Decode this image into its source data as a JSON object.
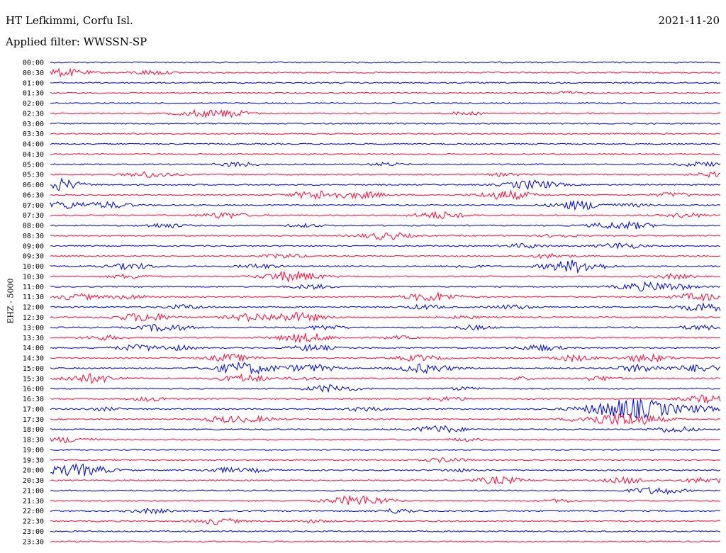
{
  "header": {
    "station": "HT Lefkimmi, Corfu Isl.",
    "date": "2021-11-20",
    "filter": "Applied filter: WWSSN-SP"
  },
  "channel_label": "EHZ - 5000",
  "colors": {
    "even_trace": "#0a12d8",
    "odd_trace": "#ff1744"
  },
  "chart_data": {
    "type": "line",
    "title": "HT Lefkimmi, Corfu Isl.",
    "subtitle": "Applied filter: WWSSN-SP",
    "ylabel": "EHZ - 5000",
    "xlabel": "",
    "grid": false,
    "rows": [
      {
        "label": "00:00",
        "events": []
      },
      {
        "label": "00:30",
        "events": [
          [
            0.02,
            5
          ],
          [
            0.15,
            3
          ]
        ]
      },
      {
        "label": "01:00",
        "events": []
      },
      {
        "label": "01:30",
        "events": [
          [
            0.77,
            2
          ]
        ]
      },
      {
        "label": "02:00",
        "events": []
      },
      {
        "label": "02:30",
        "events": [
          [
            0.22,
            4
          ],
          [
            0.26,
            3
          ],
          [
            0.28,
            2
          ],
          [
            0.62,
            2
          ]
        ]
      },
      {
        "label": "03:00",
        "events": []
      },
      {
        "label": "03:30",
        "events": []
      },
      {
        "label": "04:00",
        "events": []
      },
      {
        "label": "04:30",
        "events": []
      },
      {
        "label": "05:00",
        "events": [
          [
            0.28,
            3
          ],
          [
            0.5,
            2
          ],
          [
            0.97,
            3
          ]
        ]
      },
      {
        "label": "05:30",
        "events": [
          [
            0.15,
            4
          ],
          [
            0.68,
            2
          ],
          [
            0.99,
            3
          ]
        ]
      },
      {
        "label": "06:00",
        "events": [
          [
            0.0,
            6
          ],
          [
            0.02,
            3
          ],
          [
            0.72,
            6
          ]
        ]
      },
      {
        "label": "06:30",
        "events": [
          [
            0.4,
            6
          ],
          [
            0.47,
            4
          ],
          [
            0.68,
            6
          ],
          [
            0.93,
            3
          ]
        ]
      },
      {
        "label": "07:00",
        "events": [
          [
            0.02,
            5
          ],
          [
            0.09,
            4
          ],
          [
            0.79,
            6
          ],
          [
            0.87,
            2
          ]
        ]
      },
      {
        "label": "07:30",
        "events": [
          [
            0.26,
            4
          ],
          [
            0.58,
            5
          ],
          [
            0.95,
            3
          ]
        ]
      },
      {
        "label": "08:00",
        "events": [
          [
            0.17,
            3
          ],
          [
            0.38,
            2
          ],
          [
            0.83,
            3
          ],
          [
            0.87,
            4
          ]
        ]
      },
      {
        "label": "08:30",
        "events": [
          [
            0.5,
            5
          ],
          [
            0.76,
            2
          ]
        ]
      },
      {
        "label": "09:00",
        "events": [
          [
            0.71,
            3
          ],
          [
            0.85,
            4
          ]
        ]
      },
      {
        "label": "09:30",
        "events": [
          [
            0.35,
            3
          ],
          [
            0.75,
            3
          ]
        ]
      },
      {
        "label": "10:00",
        "events": [
          [
            0.12,
            4
          ],
          [
            0.31,
            3
          ],
          [
            0.62,
            2
          ],
          [
            0.77,
            6
          ],
          [
            0.8,
            4
          ]
        ]
      },
      {
        "label": "10:30",
        "events": [
          [
            0.12,
            3
          ],
          [
            0.36,
            7
          ],
          [
            0.93,
            3
          ]
        ]
      },
      {
        "label": "11:00",
        "events": [
          [
            0.39,
            3
          ],
          [
            0.88,
            5
          ],
          [
            0.93,
            4
          ]
        ]
      },
      {
        "label": "11:30",
        "events": [
          [
            0.04,
            4
          ],
          [
            0.12,
            3
          ],
          [
            0.57,
            6
          ],
          [
            0.97,
            5
          ]
        ]
      },
      {
        "label": "12:00",
        "events": [
          [
            0.2,
            3
          ],
          [
            0.56,
            3
          ],
          [
            0.69,
            3
          ],
          [
            0.98,
            6
          ]
        ]
      },
      {
        "label": "12:30",
        "events": [
          [
            0.14,
            6
          ],
          [
            0.3,
            5
          ],
          [
            0.37,
            6
          ],
          [
            0.62,
            2
          ]
        ]
      },
      {
        "label": "13:00",
        "events": [
          [
            0.17,
            5
          ],
          [
            0.41,
            3
          ],
          [
            0.63,
            3
          ],
          [
            0.97,
            3
          ]
        ]
      },
      {
        "label": "13:30",
        "events": [
          [
            0.08,
            3
          ],
          [
            0.38,
            6
          ],
          [
            0.52,
            2
          ]
        ]
      },
      {
        "label": "14:00",
        "events": [
          [
            0.13,
            4
          ],
          [
            0.19,
            3
          ],
          [
            0.39,
            4
          ],
          [
            0.73,
            4
          ]
        ]
      },
      {
        "label": "14:30",
        "events": [
          [
            0.27,
            5
          ],
          [
            0.55,
            4
          ],
          [
            0.78,
            4
          ],
          [
            0.89,
            5
          ]
        ]
      },
      {
        "label": "15:00",
        "events": [
          [
            0.29,
            8
          ],
          [
            0.39,
            5
          ],
          [
            0.56,
            6
          ],
          [
            0.88,
            5
          ],
          [
            0.97,
            5
          ]
        ]
      },
      {
        "label": "15:30",
        "events": [
          [
            0.06,
            6
          ],
          [
            0.29,
            5
          ],
          [
            0.38,
            2
          ],
          [
            0.7,
            2
          ],
          [
            0.82,
            3
          ]
        ]
      },
      {
        "label": "16:00",
        "events": [
          [
            0.42,
            5
          ],
          [
            0.62,
            2
          ]
        ]
      },
      {
        "label": "16:30",
        "events": [
          [
            0.15,
            3
          ],
          [
            0.59,
            3
          ],
          [
            0.98,
            5
          ]
        ]
      },
      {
        "label": "17:00",
        "events": [
          [
            0.08,
            2
          ],
          [
            0.47,
            3
          ],
          [
            0.87,
            14
          ],
          [
            0.97,
            3
          ]
        ]
      },
      {
        "label": "17:30",
        "events": [
          [
            0.26,
            4
          ],
          [
            0.31,
            3
          ],
          [
            0.8,
            3
          ],
          [
            0.86,
            9
          ]
        ]
      },
      {
        "label": "18:00",
        "events": [
          [
            0.58,
            5
          ],
          [
            0.93,
            4
          ]
        ]
      },
      {
        "label": "18:30",
        "events": [
          [
            0.03,
            4
          ],
          [
            0.62,
            2
          ]
        ]
      },
      {
        "label": "19:00",
        "events": []
      },
      {
        "label": "19:30",
        "events": [
          [
            0.59,
            3
          ]
        ]
      },
      {
        "label": "20:00",
        "events": [
          [
            0.04,
            8
          ],
          [
            0.26,
            3
          ],
          [
            0.31,
            2
          ],
          [
            0.61,
            2
          ]
        ]
      },
      {
        "label": "20:30",
        "events": [
          [
            0.67,
            5
          ],
          [
            0.86,
            4
          ],
          [
            0.98,
            4
          ]
        ]
      },
      {
        "label": "21:00",
        "events": [
          [
            0.89,
            3
          ],
          [
            0.92,
            3
          ]
        ]
      },
      {
        "label": "21:30",
        "events": [
          [
            0.46,
            7
          ],
          [
            0.76,
            2
          ]
        ]
      },
      {
        "label": "22:00",
        "events": [
          [
            0.15,
            3
          ],
          [
            0.52,
            3
          ]
        ]
      },
      {
        "label": "22:30",
        "events": [
          [
            0.25,
            4
          ],
          [
            0.39,
            2
          ]
        ]
      },
      {
        "label": "23:00",
        "events": []
      },
      {
        "label": "23:30",
        "events": []
      }
    ]
  }
}
